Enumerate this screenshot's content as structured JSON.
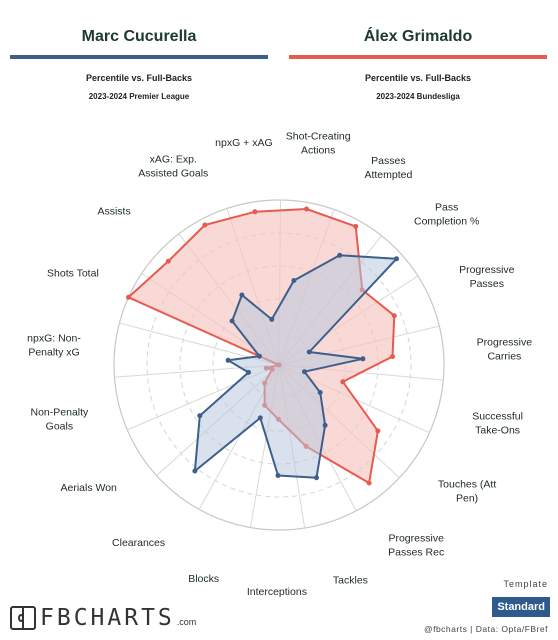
{
  "header": {
    "left": {
      "name": "Marc Cucurella",
      "subtitle": "Percentile vs. Full-Backs",
      "competition": "2023-2024 Premier League"
    },
    "right": {
      "name": "Álex Grimaldo",
      "subtitle": "Percentile vs. Full-Backs",
      "competition": "2023-2024 Bundesliga"
    }
  },
  "colors": {
    "left": "#3e5f8c",
    "left_fill": "#b8c8dc",
    "right": "#e85a4f",
    "right_fill": "#f6c4c0",
    "grid": "#d5d5d5"
  },
  "chart_data": {
    "type": "radar",
    "axes": [
      {
        "label": [
          "Shot-Creating",
          "Actions"
        ]
      },
      {
        "label": [
          "Passes",
          "Attempted"
        ]
      },
      {
        "label": [
          "Pass",
          "Completion %"
        ]
      },
      {
        "label": [
          "Progressive",
          "Passes"
        ]
      },
      {
        "label": [
          "Progressive",
          "Carries"
        ]
      },
      {
        "label": [
          "Successful",
          "Take-Ons"
        ]
      },
      {
        "label": [
          "Touches (Att",
          "Pen)"
        ]
      },
      {
        "label": [
          "Progressive",
          "Passes Rec"
        ]
      },
      {
        "label": [
          "Tackles"
        ]
      },
      {
        "label": [
          "Interceptions"
        ]
      },
      {
        "label": [
          "Blocks"
        ]
      },
      {
        "label": [
          "Clearances"
        ]
      },
      {
        "label": [
          "Aerials Won"
        ]
      },
      {
        "label": [
          "Non-Penalty",
          "Goals"
        ]
      },
      {
        "label": [
          "npxG: Non-",
          "Penalty xG"
        ]
      },
      {
        "label": [
          "Shots Total"
        ]
      },
      {
        "label": [
          "Assists"
        ]
      },
      {
        "label": [
          "xAG: Exp.",
          "Assisted Goals"
        ]
      },
      {
        "label": [
          "npxG + xAG"
        ]
      }
    ],
    "series": [
      {
        "name": "Marc Cucurella",
        "values": [
          52,
          76,
          96,
          20,
          51,
          16,
          30,
          46,
          72,
          67,
          34,
          82,
          57,
          19,
          31,
          13,
          39,
          48,
          28
        ]
      },
      {
        "name": "Álex Grimaldo",
        "values": [
          96,
          96,
          68,
          76,
          69,
          40,
          72,
          90,
          52,
          33,
          26,
          14,
          5,
          8,
          0,
          100,
          92,
          96,
          94
        ]
      }
    ],
    "rlim": [
      0,
      100
    ],
    "rings": [
      20,
      40,
      60,
      80,
      100
    ]
  },
  "footer": {
    "logo_text": "FBCHARTS",
    "logo_dot": ".com",
    "template_label": "Template",
    "template_value": "Standard",
    "source": "@fbcharts | Data: Opta/FBref"
  }
}
